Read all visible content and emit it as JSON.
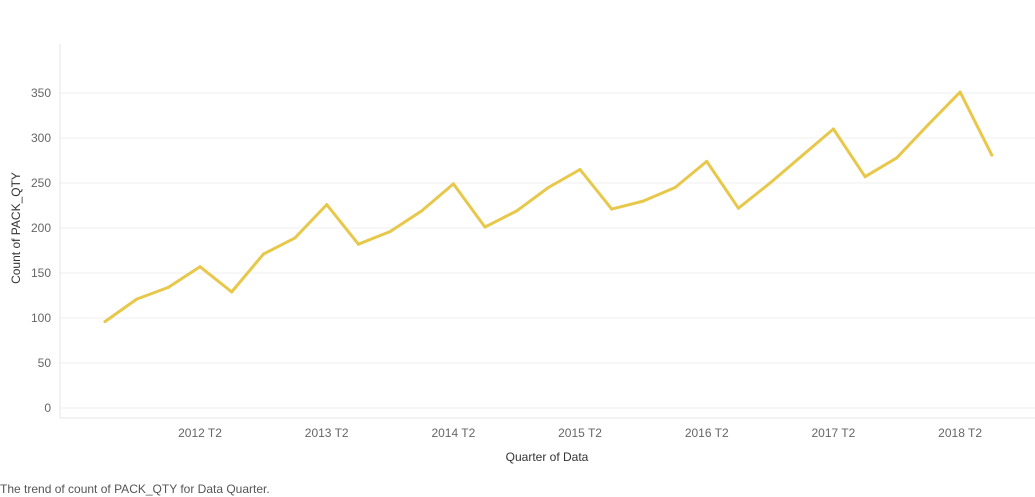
{
  "chart_data": {
    "type": "line",
    "xlabel": "Quarter of Data",
    "ylabel": "Count of PACK_QTY",
    "ylim": [
      0,
      360
    ],
    "yticks": [
      0,
      50,
      100,
      150,
      200,
      250,
      300,
      350
    ],
    "x_tick_labels": [
      "2012 T2",
      "2013 T2",
      "2014 T2",
      "2015 T2",
      "2016 T2",
      "2017 T2",
      "2018 T2"
    ],
    "x": [
      "2011 T3",
      "2011 T4",
      "2012 T1",
      "2012 T2",
      "2012 T3",
      "2012 T4",
      "2013 T1",
      "2013 T2",
      "2013 T3",
      "2013 T4",
      "2014 T1",
      "2014 T2",
      "2014 T3",
      "2014 T4",
      "2015 T1",
      "2015 T2",
      "2015 T3",
      "2015 T4",
      "2016 T1",
      "2016 T2",
      "2016 T3",
      "2016 T4",
      "2017 T1",
      "2017 T2",
      "2017 T3",
      "2017 T4",
      "2018 T1",
      "2018 T2",
      "2018 T3"
    ],
    "series": [
      {
        "values": [
          96,
          121,
          134,
          157,
          129,
          171,
          189,
          226,
          182,
          196,
          219,
          249,
          201,
          219,
          245,
          265,
          221,
          230,
          245,
          274,
          222,
          250,
          280,
          310,
          257,
          278,
          315,
          351,
          281
        ],
        "color": "#E8C84A"
      }
    ],
    "grid": true,
    "legend": "none"
  },
  "caption": "The trend of count of PACK_QTY for Data Quarter."
}
